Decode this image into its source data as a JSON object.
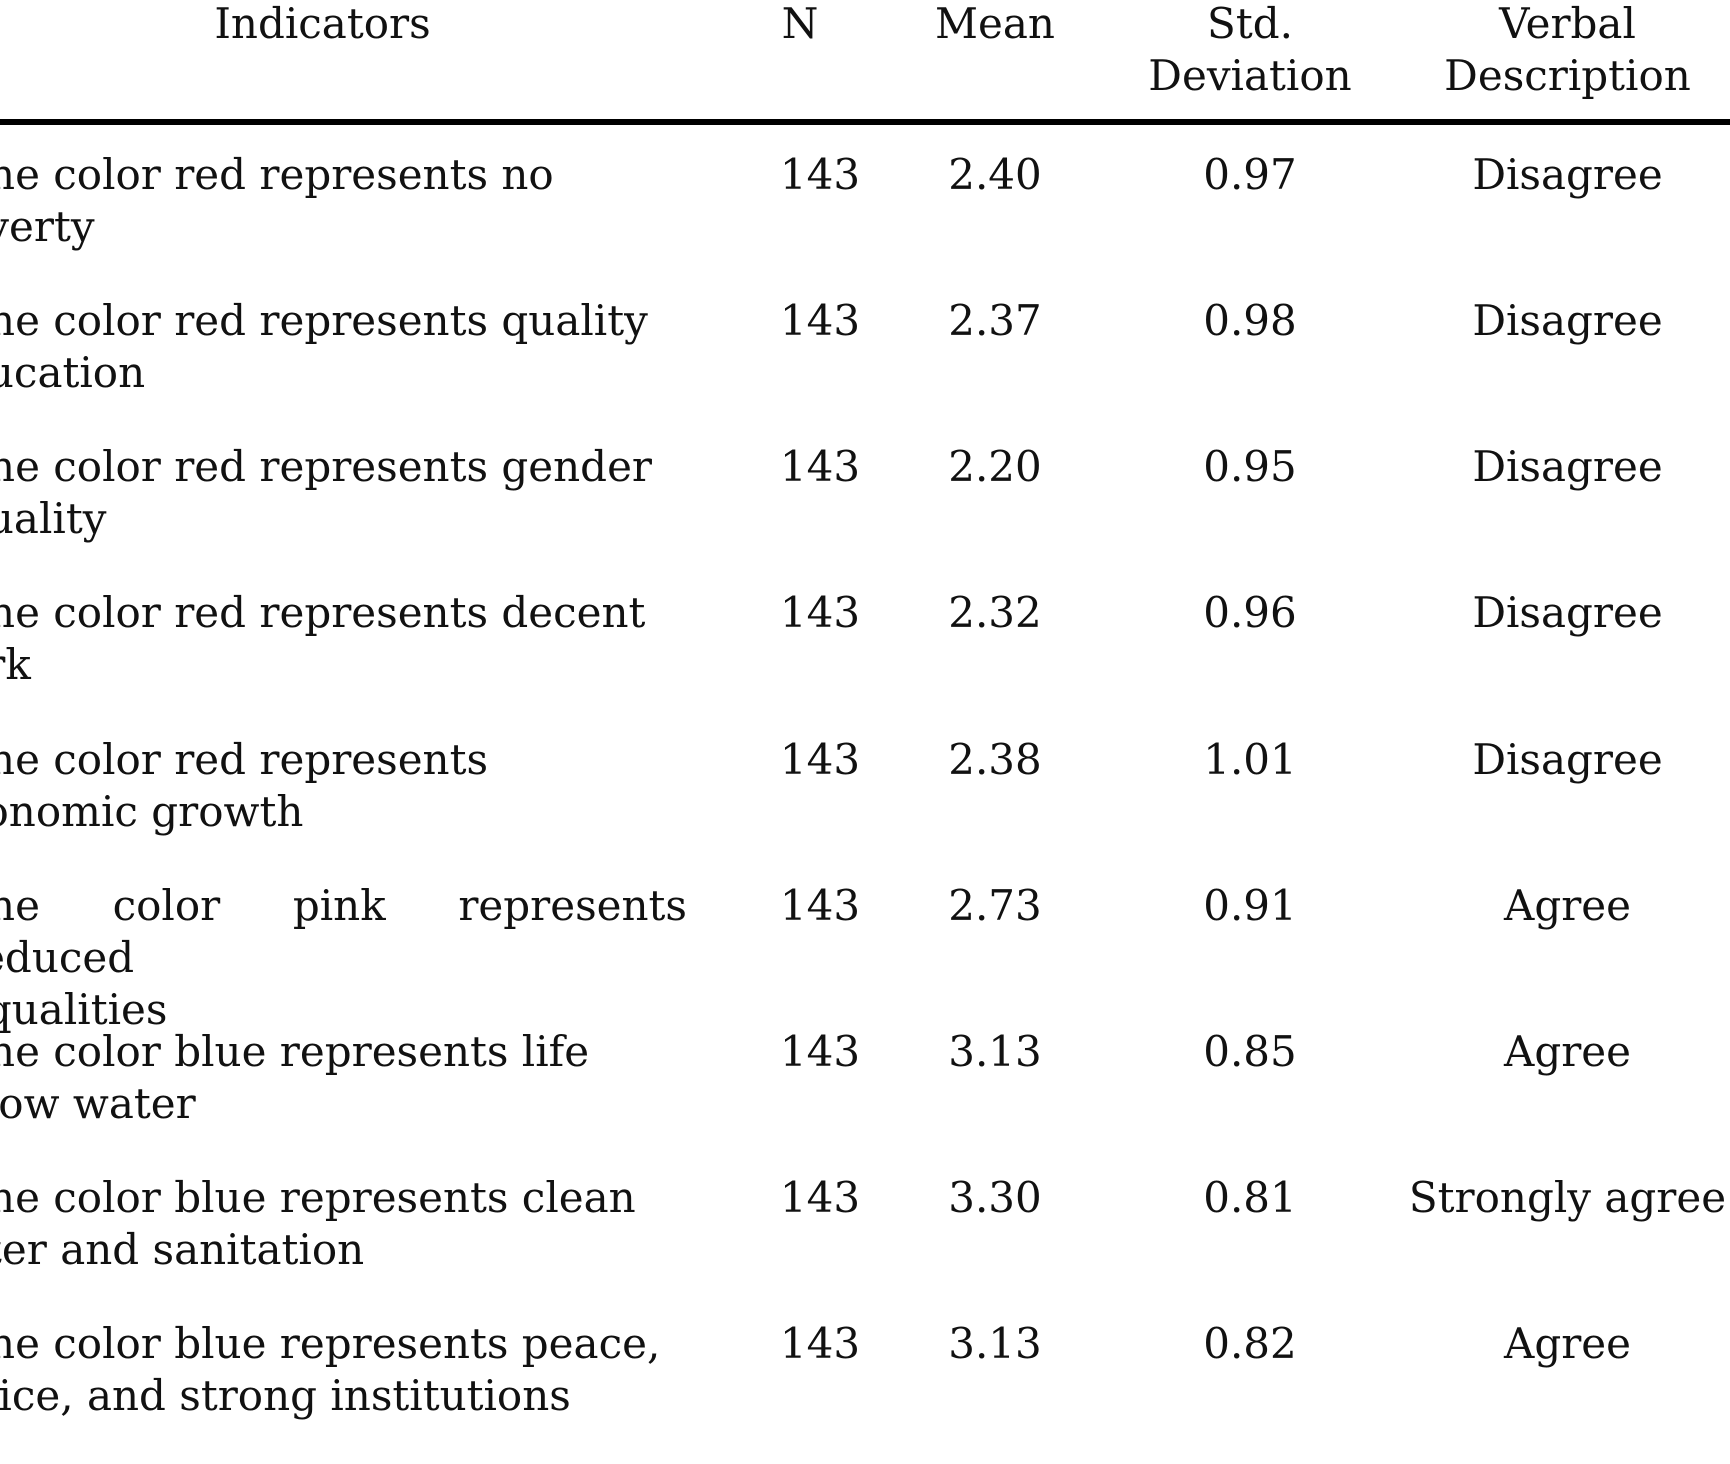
{
  "table": {
    "headers": {
      "indicators": "Indicators",
      "n": "N",
      "mean_label": "Mean",
      "std_line1": "Std.",
      "std_line2": "Deviation",
      "verbal_line1": "Verbal",
      "verbal_line2": "Description"
    },
    "rows": [
      {
        "indicator_line1": "The color red represents no",
        "indicator_line2": "overty",
        "n": "143",
        "mean": "2.40",
        "std": "0.97",
        "verbal": "Disagree"
      },
      {
        "indicator_line1": "The color red represents quality",
        "indicator_line2": "ducation",
        "n": "143",
        "mean": "2.37",
        "std": "0.98",
        "verbal": "Disagree"
      },
      {
        "indicator_line1": "The color red represents gender",
        "indicator_line2": "quality",
        "n": "143",
        "mean": "2.20",
        "std": "0.95",
        "verbal": "Disagree"
      },
      {
        "indicator_line1": "The color red represents decent",
        "indicator_line2": "ork",
        "n": "143",
        "mean": "2.32",
        "std": "0.96",
        "verbal": "Disagree"
      },
      {
        "indicator_line1": "The color red represents",
        "indicator_line2": "conomic growth",
        "n": "143",
        "mean": "2.38",
        "std": "1.01",
        "verbal": "Disagree"
      },
      {
        "indicator_line1": "The color pink represents reduced",
        "indicator_line2": "equalities",
        "n": "143",
        "mean": "2.73",
        "std": "0.91",
        "verbal": "Agree"
      },
      {
        "indicator_line1": "The color blue represents life",
        "indicator_line2": "elow water",
        "n": "143",
        "mean": "3.13",
        "std": "0.85",
        "verbal": "Agree"
      },
      {
        "indicator_line1": "The color blue represents clean",
        "indicator_line2": "ater and sanitation",
        "n": "143",
        "mean": "3.30",
        "std": "0.81",
        "verbal": "Strongly agree"
      },
      {
        "indicator_line1": "The color blue represents peace,",
        "indicator_line2": "stice, and strong institutions",
        "n": "143",
        "mean": "3.13",
        "std": "0.82",
        "verbal": "Agree"
      }
    ]
  }
}
